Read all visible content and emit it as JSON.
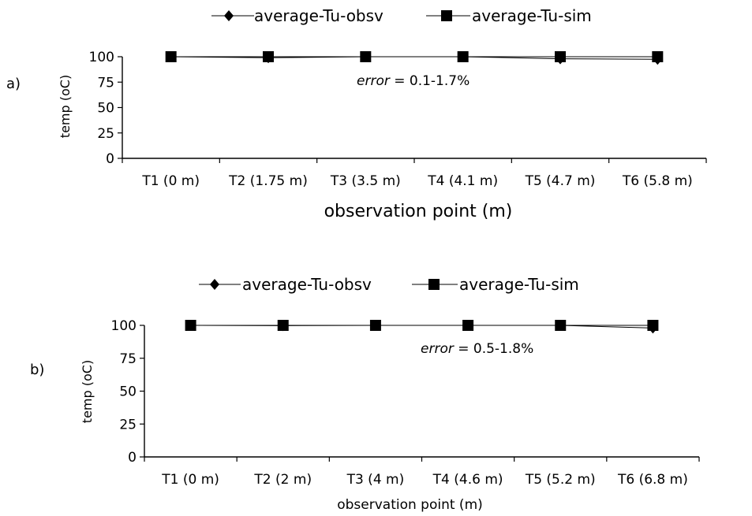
{
  "chart_data": [
    {
      "panel_label": "a)",
      "type": "line",
      "categories": [
        "T1 (0 m)",
        "T2 (1.75 m)",
        "T3 (3.5 m)",
        "T4 (4.1 m)",
        "T5 (4.7 m)",
        "T6 (5.8 m)"
      ],
      "series": [
        {
          "name": "average-Tu-obsv",
          "marker": "diamond",
          "values": [
            100,
            99,
            100,
            100,
            98,
            97.5
          ]
        },
        {
          "name": "average-Tu-sim",
          "marker": "square",
          "values": [
            100,
            100,
            100,
            100,
            100,
            100
          ]
        }
      ],
      "ylabel": "temp (oC)",
      "xlabel": "observation point (m)",
      "yticks": [
        "0",
        "25",
        "50",
        "75",
        "100"
      ],
      "ylim": [
        0,
        100
      ],
      "annotation": {
        "italic": "error",
        "rest": " = 0.1-1.7%"
      },
      "legend": "top",
      "grid": false
    },
    {
      "panel_label": "b)",
      "type": "line",
      "categories": [
        "T1 (0 m)",
        "T2 (2 m)",
        "T3 (4 m)",
        "T4 (4.6 m)",
        "T5 (5.2 m)",
        "T6 (6.8 m)"
      ],
      "series": [
        {
          "name": "average-Tu-obsv",
          "marker": "diamond",
          "values": [
            100,
            99.8,
            100,
            100,
            100,
            98
          ]
        },
        {
          "name": "average-Tu-sim",
          "marker": "square",
          "values": [
            100,
            100,
            100,
            100,
            100,
            100
          ]
        }
      ],
      "ylabel": "temp (oC)",
      "xlabel": "observation point (m)",
      "yticks": [
        "0",
        "25",
        "50",
        "75",
        "100"
      ],
      "ylim": [
        0,
        100
      ],
      "annotation": {
        "italic": "error",
        "rest": " = 0.5-1.8%"
      },
      "legend": "top",
      "grid": false
    }
  ]
}
